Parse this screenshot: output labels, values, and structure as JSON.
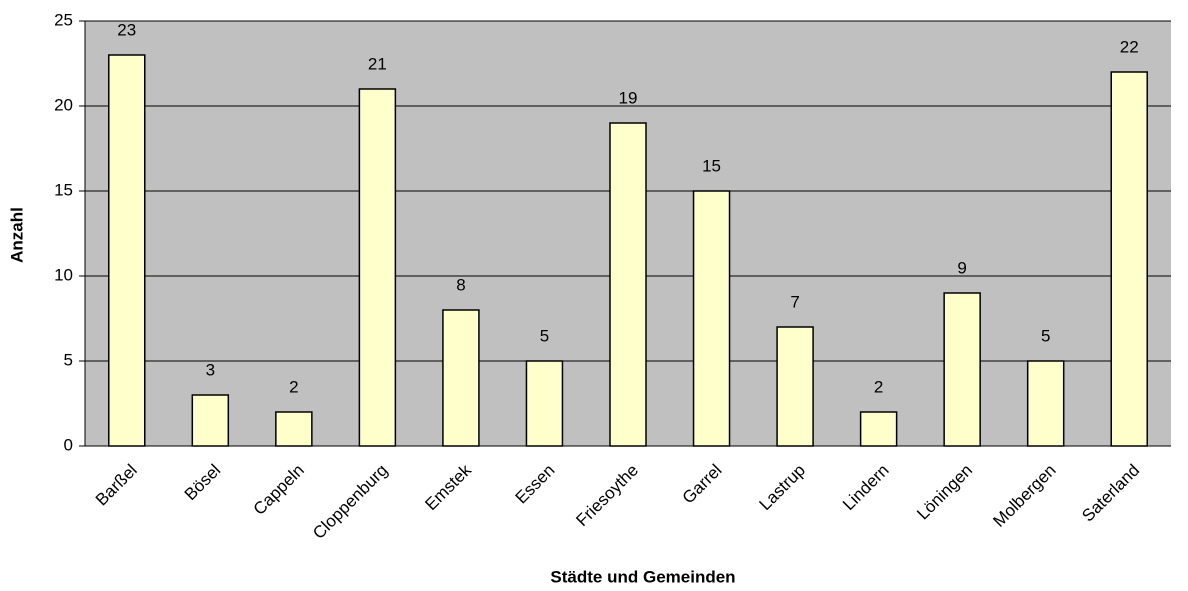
{
  "chart_data": {
    "type": "bar",
    "xlabel": "Städte und Gemeinden",
    "ylabel": "Anzahl",
    "categories": [
      "Barßel",
      "Bösel",
      "Cappeln",
      "Cloppenburg",
      "Emstek",
      "Essen",
      "Friesoythe",
      "Garrel",
      "Lastrup",
      "Lindern",
      "Löningen",
      "Molbergen",
      "Saterland"
    ],
    "values": [
      23,
      3,
      2,
      21,
      8,
      5,
      19,
      15,
      7,
      2,
      9,
      5,
      22
    ],
    "color": "#ffffcc",
    "plot_background": "#c0c0c0",
    "ylim": [
      0,
      25
    ],
    "yticks": [
      0,
      5,
      10,
      15,
      20,
      25
    ],
    "grid": true
  }
}
